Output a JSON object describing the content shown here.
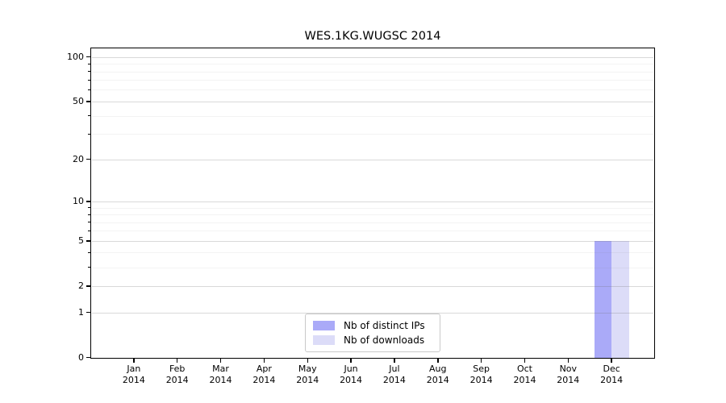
{
  "page": {
    "background": "#ffffff"
  },
  "chart_data": {
    "type": "bar",
    "title": "WES.1KG.WUGSC 2014",
    "x_tick_months": [
      "Jan",
      "Feb",
      "Mar",
      "Apr",
      "May",
      "Jun",
      "Jul",
      "Aug",
      "Sep",
      "Oct",
      "Nov",
      "Dec"
    ],
    "x_tick_year": "2014",
    "series": [
      {
        "name": "Nb of distinct IPs",
        "color": "#aaaaf8",
        "values": [
          0,
          0,
          0,
          0,
          0,
          0,
          0,
          0,
          0,
          0,
          0,
          5
        ]
      },
      {
        "name": "Nb of downloads",
        "color": "#dcdcf8",
        "values": [
          0,
          0,
          0,
          0,
          0,
          0,
          0,
          0,
          0,
          0,
          0,
          5
        ]
      }
    ],
    "y_axis": {
      "scale": "log1p",
      "major_ticks": [
        0,
        1,
        2,
        5,
        10,
        20,
        50,
        100
      ],
      "minor_gridlines": [
        3,
        4,
        6,
        7,
        8,
        9,
        30,
        40,
        60,
        70,
        80,
        90
      ],
      "range": [
        0,
        113
      ]
    },
    "grid": true,
    "legend_position": "bottom-center"
  }
}
